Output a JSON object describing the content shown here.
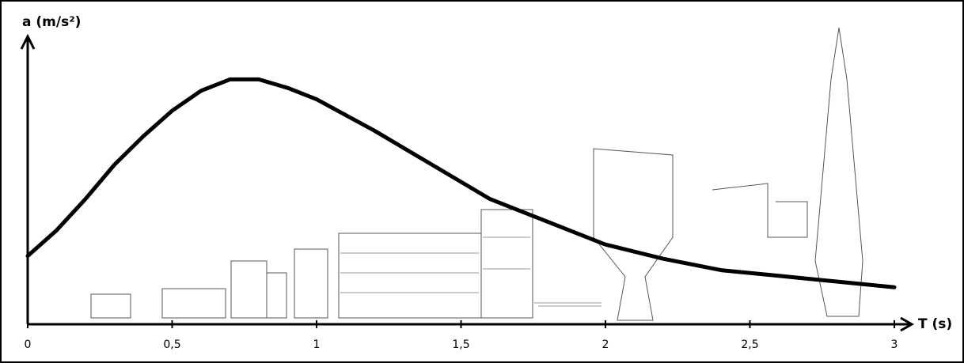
{
  "chart_data": {
    "type": "line",
    "ylabel": "a (m/s²)",
    "xlabel": "T (s)",
    "x": [
      0,
      0.1,
      0.2,
      0.3,
      0.4,
      0.5,
      0.6,
      0.7,
      0.8,
      0.9,
      1.0,
      1.2,
      1.4,
      1.6,
      1.8,
      2.0,
      2.2,
      2.4,
      2.6,
      2.8,
      3.0
    ],
    "series": [
      {
        "color": "#000000",
        "values": [
          0.24,
          0.33,
          0.44,
          0.56,
          0.66,
          0.75,
          0.82,
          0.86,
          0.86,
          0.83,
          0.79,
          0.68,
          0.56,
          0.44,
          0.36,
          0.28,
          0.23,
          0.19,
          0.17,
          0.15,
          0.13
        ]
      }
    ],
    "xlim": [
      0,
      3
    ],
    "ylim": [
      0,
      1
    ],
    "xticks": [
      0,
      {
        "value": 0.5,
        "label": "0,5"
      },
      1,
      {
        "value": 1.5,
        "label": "1,5"
      },
      2,
      {
        "value": 2.5,
        "label": "2,5"
      },
      3
    ]
  }
}
